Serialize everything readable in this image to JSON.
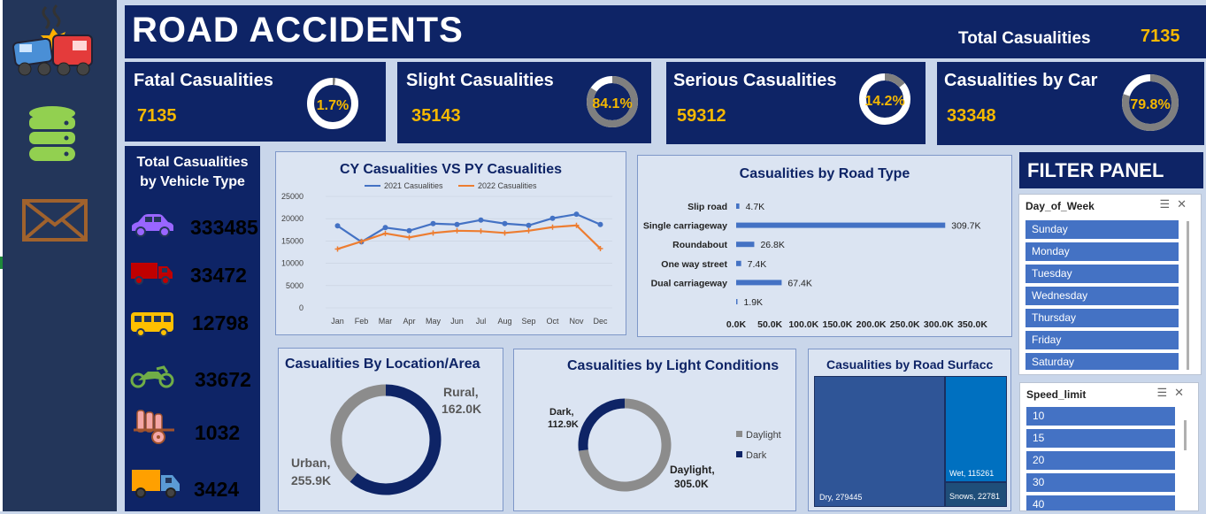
{
  "app": {
    "title": "ROAD ACCIDENTS",
    "total_label": "Total Casualities",
    "total_value": "7135"
  },
  "sidebar": {
    "icons": [
      "car-crash-icon",
      "database-icon",
      "mail-icon"
    ]
  },
  "kpis": [
    {
      "label": "Fatal Casualities",
      "value": "7135",
      "pct": "1.7%",
      "pct_num": 1.7
    },
    {
      "label": "Slight Casualities",
      "value": "35143",
      "pct": "84.1%",
      "pct_num": 84.1
    },
    {
      "label": "Serious  Casualities",
      "value": "59312",
      "pct": "14.2%",
      "pct_num": 14.2
    },
    {
      "label": "Casualities by Car",
      "value": "33348",
      "pct": "79.8%",
      "pct_num": 79.8
    }
  ],
  "vehicle_panel": {
    "title_line1": "Total Casualities",
    "title_line2": "by Vehicle Type",
    "items": [
      {
        "icon": "car-icon",
        "value": "333485",
        "color": "#9966ff"
      },
      {
        "icon": "truck-icon",
        "value": "33472",
        "color": "#c00000"
      },
      {
        "icon": "bus-icon",
        "value": "12798",
        "color": "#ffc000"
      },
      {
        "icon": "motorcycle-icon",
        "value": "33672",
        "color": "#70ad47"
      },
      {
        "icon": "farm-vehicle-icon",
        "value": "1032",
        "color": "#a0522d"
      },
      {
        "icon": "van-icon",
        "value": "3424",
        "color": "#00b0f0"
      }
    ]
  },
  "filter": {
    "title": "FILTER PANEL",
    "day_slicer": {
      "header": "Day_of_Week",
      "options": [
        "Sunday",
        "Monday",
        "Tuesday",
        "Wednesday",
        "Thursday",
        "Friday",
        "Saturday"
      ]
    },
    "speed_slicer": {
      "header": "Speed_limit",
      "options": [
        "10",
        "15",
        "20",
        "30",
        "40"
      ]
    }
  },
  "chart_data": [
    {
      "type": "line",
      "title": "CY Casualities VS PY Casualities",
      "categories": [
        "Jan",
        "Feb",
        "Mar",
        "Apr",
        "May",
        "Jun",
        "Jul",
        "Aug",
        "Sep",
        "Oct",
        "Nov",
        "Dec"
      ],
      "series": [
        {
          "name": "2021 Casualities",
          "color": "#4472c4",
          "values": [
            18400,
            14800,
            18000,
            17300,
            18900,
            18700,
            19700,
            18900,
            18500,
            20100,
            21000,
            18700
          ]
        },
        {
          "name": "2022 Casualities",
          "color": "#ed7d31",
          "values": [
            13200,
            14900,
            16700,
            15800,
            16800,
            17300,
            17200,
            16800,
            17300,
            18100,
            18500,
            13300
          ]
        }
      ],
      "ylim": [
        0,
        25000
      ],
      "yticks": [
        "0",
        "5000",
        "10000",
        "15000",
        "20000",
        "25000"
      ]
    },
    {
      "type": "bar",
      "orientation": "horizontal",
      "title": "Casualities by Road Type",
      "categories": [
        "Slip road",
        "Single carriageway",
        "Roundabout",
        "One way street",
        "Dual carriageway",
        ""
      ],
      "values": [
        4.7,
        309.7,
        26.8,
        7.4,
        67.4,
        1.9
      ],
      "labels": [
        "4.7K",
        "309.7K",
        "26.8K",
        "7.4K",
        "67.4K",
        "1.9K"
      ],
      "color": "#4472c4",
      "xlim": [
        0,
        350
      ],
      "xticks": [
        "0.0K",
        "50.0K",
        "100.0K",
        "150.0K",
        "200.0K",
        "250.0K",
        "300.0K",
        "350.0K"
      ]
    },
    {
      "type": "pie",
      "donut": true,
      "title": "Casualities By Location/Area",
      "slices": [
        {
          "name": "Urban",
          "value": 255.9,
          "label_name": "Urban,",
          "label_value": "255.9K",
          "color": "#0e2466"
        },
        {
          "name": "Rural",
          "value": 162.0,
          "label_name": "Rural,",
          "label_value": "162.0K",
          "color": "#8c8c8c"
        }
      ]
    },
    {
      "type": "pie",
      "donut": true,
      "title": "Casualities by Light Conditions",
      "slices": [
        {
          "name": "Daylight",
          "value": 305.0,
          "label_name": "Daylight,",
          "label_value": "305.0K",
          "color": "#8c8c8c"
        },
        {
          "name": "Dark",
          "value": 112.9,
          "label_name": "Dark,",
          "label_value": "112.9K",
          "color": "#0e2466"
        }
      ],
      "legend": [
        "Daylight",
        "Dark"
      ],
      "legend_position": "right"
    },
    {
      "type": "treemap",
      "title": "Casualities by Road Surfacc",
      "items": [
        {
          "label": "Dry, 279445",
          "value": 279445,
          "color": "#2f5597"
        },
        {
          "label": "Wet, 115261",
          "value": 115261,
          "color": "#0070c0"
        },
        {
          "label": "Snows, 22781",
          "value": 22781,
          "color": "#1f4e79"
        }
      ]
    }
  ]
}
